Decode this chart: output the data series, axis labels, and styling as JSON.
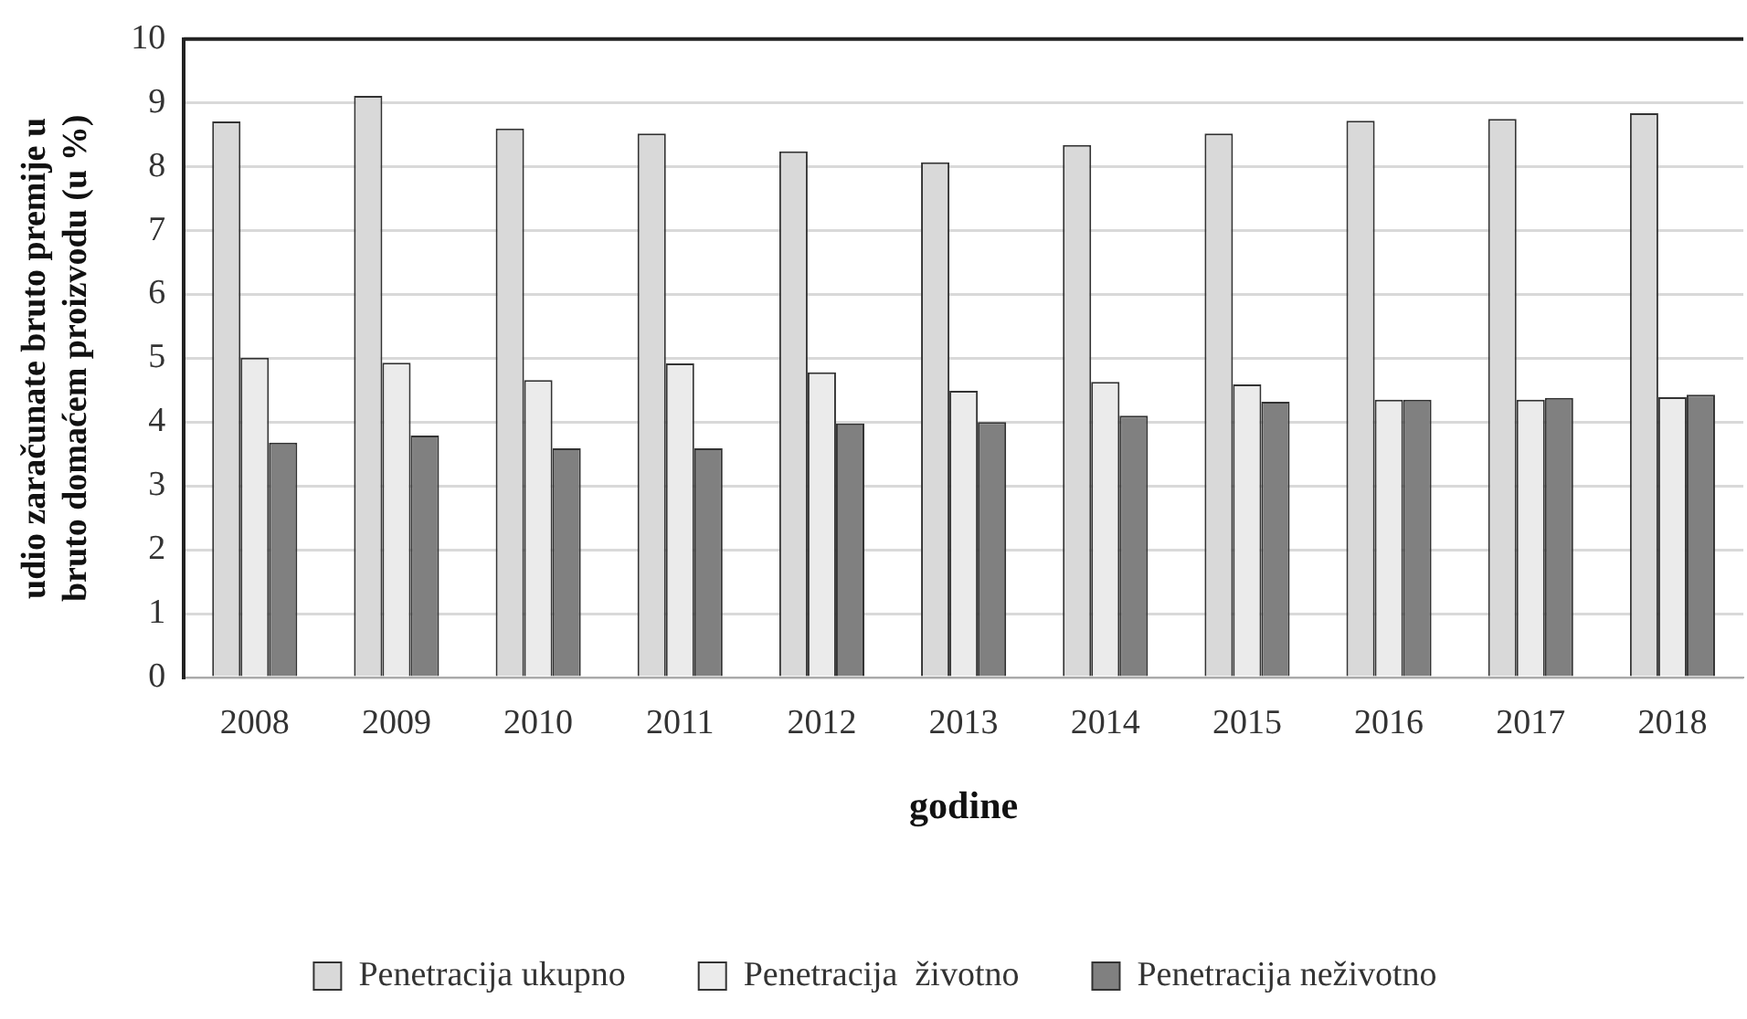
{
  "chart_data": {
    "type": "bar",
    "xlabel": "godine",
    "ylabel": "udio zaračunate bruto premije u bruto domaćem proizvodu (u %)",
    "categories": [
      "2008",
      "2009",
      "2010",
      "2011",
      "2012",
      "2013",
      "2014",
      "2015",
      "2016",
      "2017",
      "2018"
    ],
    "series": [
      {
        "name": "Penetracija ukupno",
        "color": "#d9d9d9",
        "values": [
          8.71,
          9.11,
          8.6,
          8.52,
          8.24,
          8.07,
          8.34,
          8.52,
          8.72,
          8.75,
          8.84
        ]
      },
      {
        "name": "Penetracija  životno",
        "color": "#ebebeb",
        "values": [
          5.01,
          4.93,
          4.66,
          4.92,
          4.78,
          4.49,
          4.63,
          4.59,
          4.35,
          4.35,
          4.39
        ]
      },
      {
        "name": "Penetracija neživotno",
        "color": "#808080",
        "values": [
          3.68,
          3.79,
          3.59,
          3.59,
          3.98,
          4.0,
          4.1,
          4.32,
          4.35,
          4.38,
          4.43
        ]
      }
    ],
    "ylim": [
      0,
      10
    ],
    "yticks": [
      0,
      1,
      2,
      3,
      4,
      5,
      6,
      7,
      8,
      9,
      10
    ],
    "grid": "y",
    "legend": "bottom"
  }
}
